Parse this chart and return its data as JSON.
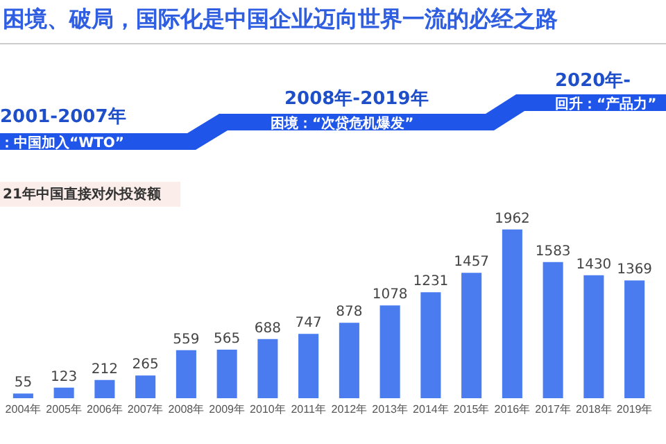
{
  "chart_data": {
    "type": "bar",
    "title": "困境、破局，国际化是中国企业迈向世界一流的必经之路",
    "subtitle": "21年中国直接对外投资额",
    "categories": [
      "2004年",
      "2005年",
      "2006年",
      "2007年",
      "2008年",
      "2009年",
      "2010年",
      "2011年",
      "2012年",
      "2013年",
      "2014年",
      "2015年",
      "2016年",
      "2017年",
      "2018年",
      "2019年"
    ],
    "values": [
      55,
      123,
      212,
      265,
      559,
      565,
      688,
      747,
      878,
      1078,
      1231,
      1457,
      1962,
      1583,
      1430,
      1369
    ],
    "color": "#4a7cf0",
    "data_labels": true,
    "annotations": [
      "2001-2007年",
      "：中国加入“WTO”",
      "2008年-2019年",
      "困境：“次贷危机爆发”",
      "2020年-",
      "回升：“产品力”"
    ]
  }
}
